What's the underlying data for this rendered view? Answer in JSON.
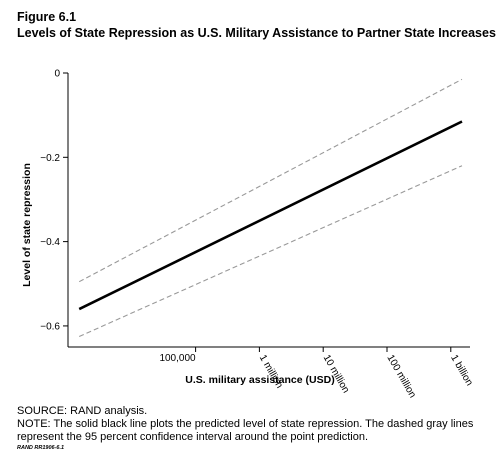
{
  "figure": {
    "label": "Figure 6.1",
    "title": "Levels of State Repression as U.S. Military Assistance to Partner State Increases"
  },
  "chart_data": {
    "type": "line",
    "xlabel": "U.S. military assistance (USD)",
    "ylabel": "Level of state repression",
    "x_scale": "log",
    "xlim": [
      1000,
      2000000000
    ],
    "ylim": [
      -0.65,
      0
    ],
    "x_ticks": [
      {
        "value": 100000,
        "label": "100,000"
      },
      {
        "value": 1000000,
        "label": "1 million"
      },
      {
        "value": 10000000,
        "label": "10 million"
      },
      {
        "value": 100000000,
        "label": "100 million"
      },
      {
        "value": 1000000000,
        "label": "1 billion"
      }
    ],
    "y_ticks": [
      {
        "value": 0,
        "label": "0"
      },
      {
        "value": -0.2,
        "label": "−0.2"
      },
      {
        "value": -0.4,
        "label": "−0.4"
      },
      {
        "value": -0.6,
        "label": "−0.6"
      }
    ],
    "series": [
      {
        "role": "prediction",
        "color": "#000000",
        "style": "solid",
        "x": [
          1500,
          1500000000
        ],
        "y": [
          -0.56,
          -0.115
        ]
      },
      {
        "role": "upper-ci",
        "color": "#999999",
        "style": "dashed",
        "x": [
          1500,
          1500000000
        ],
        "y": [
          -0.495,
          -0.015
        ]
      },
      {
        "role": "lower-ci",
        "color": "#999999",
        "style": "dashed",
        "x": [
          1500,
          1500000000
        ],
        "y": [
          -0.625,
          -0.22
        ]
      }
    ],
    "grid": false,
    "legend": "none"
  },
  "notes": {
    "source": "SOURCE: RAND analysis.",
    "note": "NOTE: The solid black line plots the predicted level of state repression. The dashed gray lines represent the 95 percent confidence interval around the point prediction.",
    "credit": "RAND RR1906-6.1"
  }
}
